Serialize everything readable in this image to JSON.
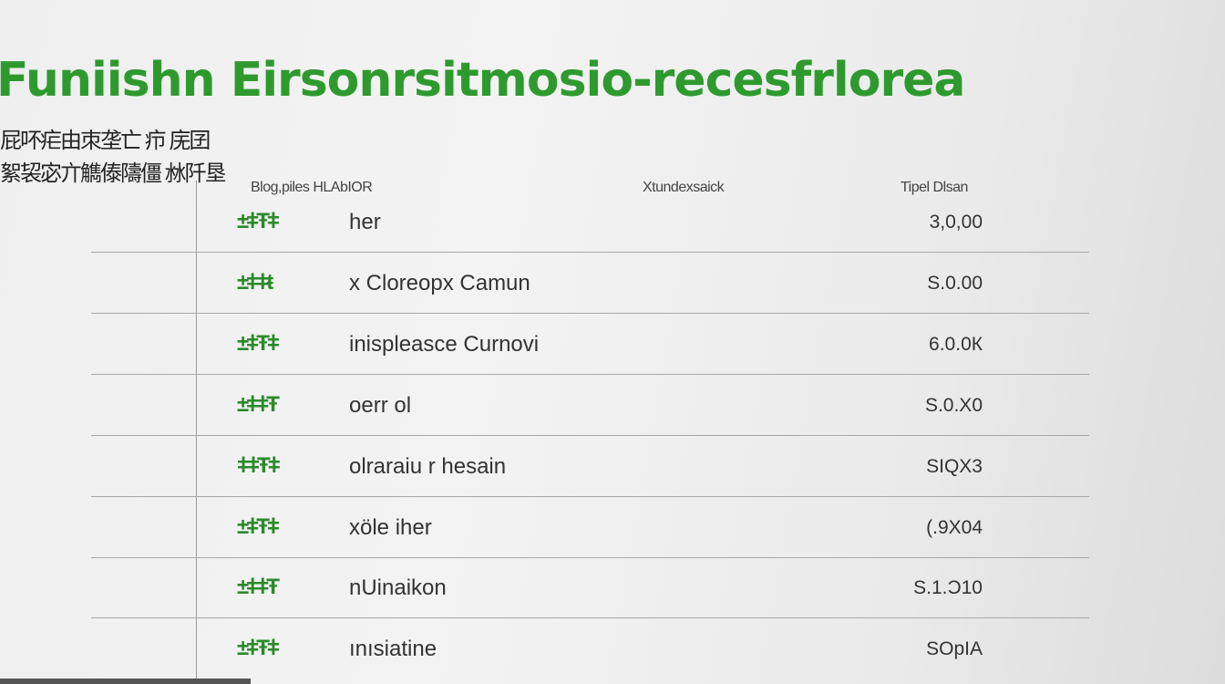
{
  "title": "Funiishn Eirsonrsitmosio-recesfrlorea",
  "subtitle_lines": [
    "屁吥疟由朿垄亡 疖 庑囝",
    "絮袃宓亣觹傣隯僵 沝阡垦"
  ],
  "table": {
    "headers": [
      "Blog,piles  HLAbIOR",
      "Xtundexsaick",
      "Tipel Dlsan"
    ],
    "rows": [
      {
        "icon": "±ǂŦǂ",
        "name": "her",
        "value": "3,0,00"
      },
      {
        "icon": "±ǂǂŧ",
        "name": "x Cloreорx Camun",
        "value": "S.0.00"
      },
      {
        "icon": "±ǂŦǂ",
        "name": "inispleasce Curnovi",
        "value": "6.0.0К"
      },
      {
        "icon": "±ǂǂŦ",
        "name": "oerr ol",
        "value": "S.0.X0"
      },
      {
        "icon": "ǂǂŦǂ",
        "name": "olraraiu r hesain",
        "value": "SIQX3"
      },
      {
        "icon": "±ǂŦǂ",
        "name": "xöle iher",
        "value": "(.9X04"
      },
      {
        "icon": "±ǂǂŦ",
        "name": "nUinaikon",
        "value": "S.1.Ɔ10"
      },
      {
        "icon": "±ǂŦǂ",
        "name": "ınısiatine",
        "value": "SOpIA"
      }
    ]
  },
  "colors": {
    "accent": "#2e9a2e",
    "text": "#333333"
  }
}
